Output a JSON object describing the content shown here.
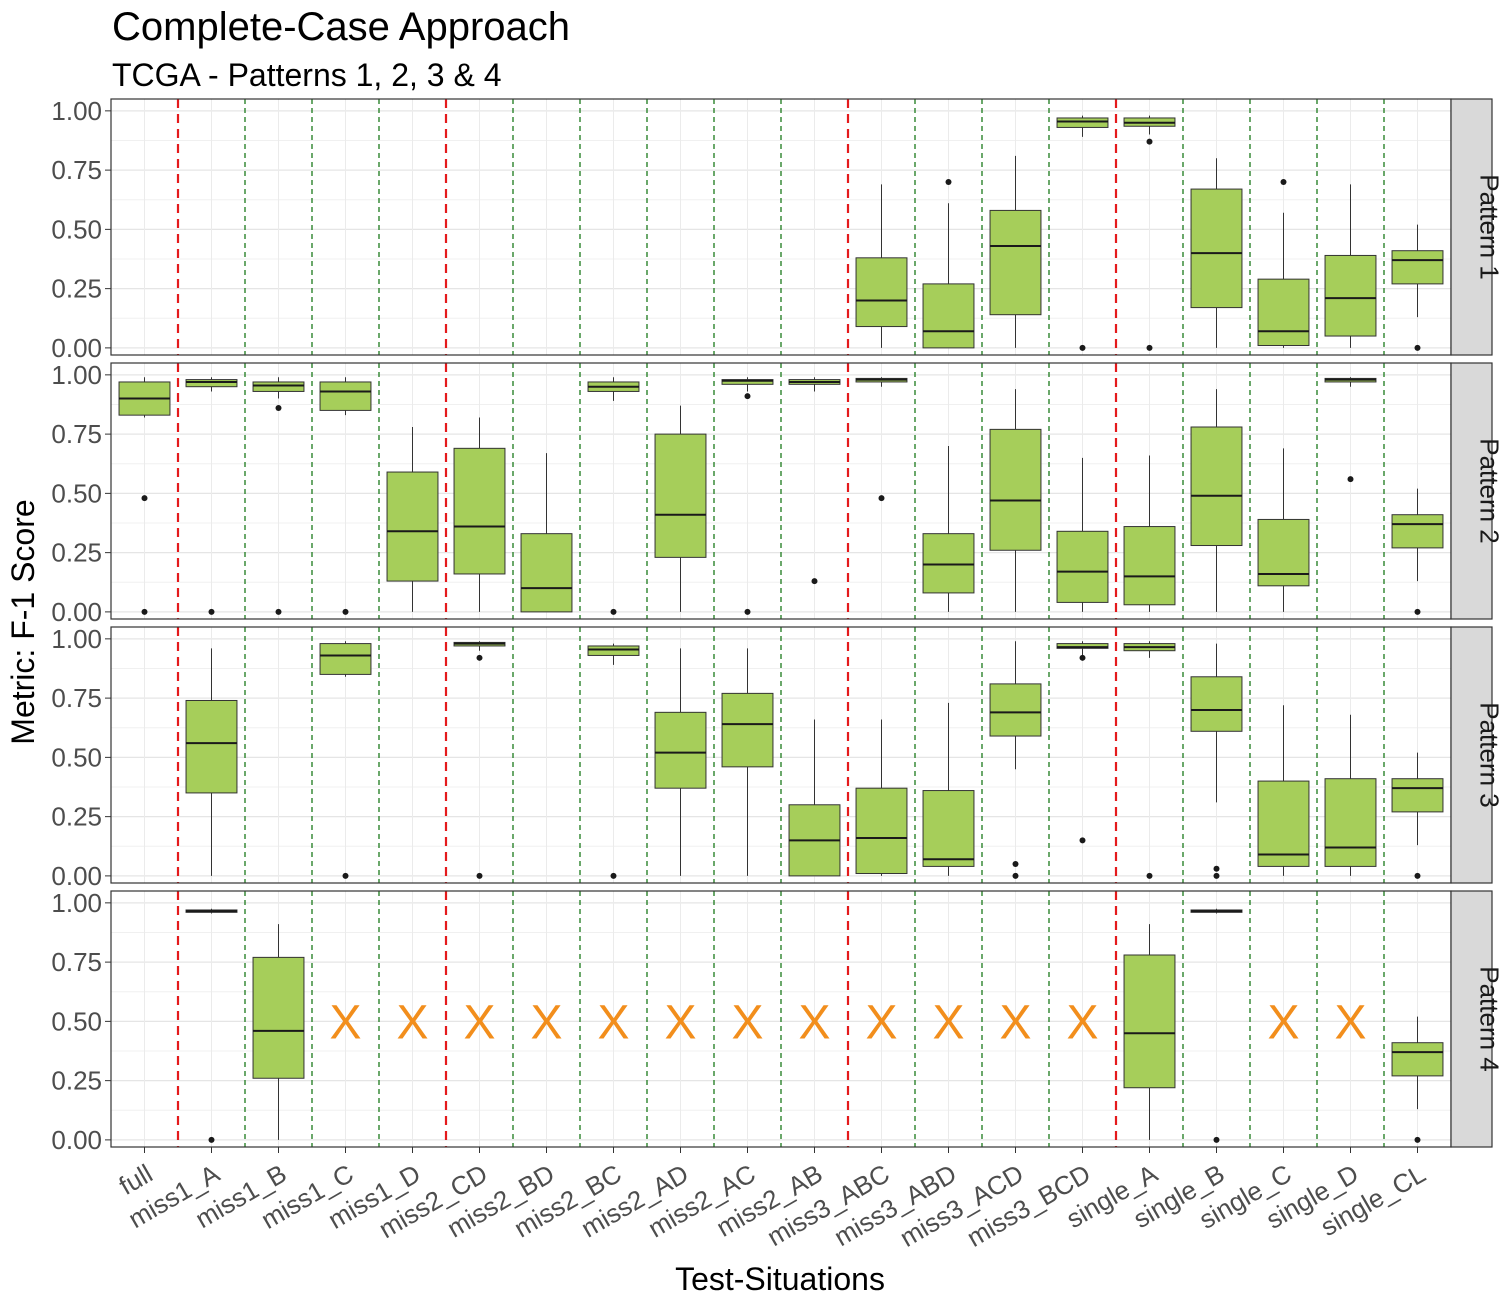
{
  "chart_data": {
    "type": "boxplot",
    "title": "Complete-Case Approach",
    "subtitle": "TCGA - Patterns 1, 2, 3 & 4",
    "xlabel": "Test-Situations",
    "ylabel": "Metric: F-1 Score",
    "ylim": [
      -0.03,
      1.05
    ],
    "yticks": [
      "0.00",
      "0.25",
      "0.50",
      "0.75",
      "1.00"
    ],
    "categories": [
      "full",
      "miss1_A",
      "miss1_B",
      "miss1_C",
      "miss1_D",
      "miss2_CD",
      "miss2_BD",
      "miss2_BC",
      "miss2_AD",
      "miss2_AC",
      "miss2_AB",
      "miss3_ABC",
      "miss3_ABD",
      "miss3_ACD",
      "miss3_BCD",
      "single_A",
      "single_B",
      "single_C",
      "single_D",
      "single_CL"
    ],
    "missing_marker": "X",
    "separators": {
      "major_after_indices": [
        0,
        4,
        10,
        14
      ],
      "minor_after_indices": [
        1,
        2,
        3,
        5,
        6,
        7,
        8,
        9,
        11,
        12,
        13,
        15,
        16,
        17,
        18
      ],
      "major_color": "#e41a1c",
      "minor_color": "#1b7a1b"
    },
    "box_fill": "#a6ce5a",
    "panels": [
      {
        "label": "Pattern 1",
        "boxes": [
          {
            "category": "miss3_ABC",
            "lower": 0.0,
            "q1": 0.09,
            "median": 0.2,
            "q3": 0.38,
            "upper": 0.69,
            "outliers": []
          },
          {
            "category": "miss3_ABD",
            "lower": 0.0,
            "q1": 0.0,
            "median": 0.07,
            "q3": 0.27,
            "upper": 0.61,
            "outliers": [
              0.7
            ]
          },
          {
            "category": "miss3_ACD",
            "lower": 0.0,
            "q1": 0.14,
            "median": 0.43,
            "q3": 0.58,
            "upper": 0.81,
            "outliers": []
          },
          {
            "category": "miss3_BCD",
            "lower": 0.89,
            "q1": 0.93,
            "median": 0.955,
            "q3": 0.97,
            "upper": 0.98,
            "outliers": [
              0.0
            ]
          },
          {
            "category": "single_A",
            "lower": 0.9,
            "q1": 0.935,
            "median": 0.95,
            "q3": 0.97,
            "upper": 0.98,
            "outliers": [
              0.87,
              0.0
            ]
          },
          {
            "category": "single_B",
            "lower": 0.0,
            "q1": 0.17,
            "median": 0.4,
            "q3": 0.67,
            "upper": 0.8,
            "outliers": []
          },
          {
            "category": "single_C",
            "lower": 0.0,
            "q1": 0.01,
            "median": 0.07,
            "q3": 0.29,
            "upper": 0.57,
            "outliers": [
              0.7
            ]
          },
          {
            "category": "single_D",
            "lower": 0.0,
            "q1": 0.05,
            "median": 0.21,
            "q3": 0.39,
            "upper": 0.69,
            "outliers": []
          },
          {
            "category": "single_CL",
            "lower": 0.13,
            "q1": 0.27,
            "median": 0.37,
            "q3": 0.41,
            "upper": 0.52,
            "outliers": [
              0.0
            ]
          }
        ],
        "missing": []
      },
      {
        "label": "Pattern 2",
        "boxes": [
          {
            "category": "full",
            "lower": 0.82,
            "q1": 0.83,
            "median": 0.9,
            "q3": 0.97,
            "upper": 0.99,
            "outliers": [
              0.48,
              0.0
            ]
          },
          {
            "category": "miss1_A",
            "lower": 0.93,
            "q1": 0.95,
            "median": 0.97,
            "q3": 0.98,
            "upper": 0.99,
            "outliers": [
              0.0
            ]
          },
          {
            "category": "miss1_B",
            "lower": 0.9,
            "q1": 0.93,
            "median": 0.955,
            "q3": 0.97,
            "upper": 0.99,
            "outliers": [
              0.86,
              0.0
            ]
          },
          {
            "category": "miss1_C",
            "lower": 0.83,
            "q1": 0.85,
            "median": 0.93,
            "q3": 0.97,
            "upper": 0.99,
            "outliers": [
              0.0
            ]
          },
          {
            "category": "miss1_D",
            "lower": 0.0,
            "q1": 0.13,
            "median": 0.34,
            "q3": 0.59,
            "upper": 0.78,
            "outliers": []
          },
          {
            "category": "miss2_CD",
            "lower": 0.0,
            "q1": 0.16,
            "median": 0.36,
            "q3": 0.69,
            "upper": 0.82,
            "outliers": []
          },
          {
            "category": "miss2_BD",
            "lower": 0.0,
            "q1": 0.0,
            "median": 0.1,
            "q3": 0.33,
            "upper": 0.67,
            "outliers": []
          },
          {
            "category": "miss2_BC",
            "lower": 0.89,
            "q1": 0.93,
            "median": 0.95,
            "q3": 0.97,
            "upper": 0.99,
            "outliers": [
              0.0
            ]
          },
          {
            "category": "miss2_AD",
            "lower": 0.0,
            "q1": 0.23,
            "median": 0.41,
            "q3": 0.75,
            "upper": 0.87,
            "outliers": []
          },
          {
            "category": "miss2_AC",
            "lower": 0.93,
            "q1": 0.96,
            "median": 0.975,
            "q3": 0.98,
            "upper": 0.99,
            "outliers": [
              0.91,
              0.0
            ]
          },
          {
            "category": "miss2_AB",
            "lower": 0.93,
            "q1": 0.96,
            "median": 0.97,
            "q3": 0.98,
            "upper": 0.99,
            "outliers": [
              0.13
            ]
          },
          {
            "category": "miss3_ABC",
            "lower": 0.95,
            "q1": 0.97,
            "median": 0.98,
            "q3": 0.985,
            "upper": 0.99,
            "outliers": [
              0.48
            ]
          },
          {
            "category": "miss3_ABD",
            "lower": 0.0,
            "q1": 0.08,
            "median": 0.2,
            "q3": 0.33,
            "upper": 0.7,
            "outliers": []
          },
          {
            "category": "miss3_ACD",
            "lower": 0.0,
            "q1": 0.26,
            "median": 0.47,
            "q3": 0.77,
            "upper": 0.94,
            "outliers": []
          },
          {
            "category": "miss3_BCD",
            "lower": 0.0,
            "q1": 0.04,
            "median": 0.17,
            "q3": 0.34,
            "upper": 0.65,
            "outliers": []
          },
          {
            "category": "single_A",
            "lower": 0.0,
            "q1": 0.03,
            "median": 0.15,
            "q3": 0.36,
            "upper": 0.66,
            "outliers": []
          },
          {
            "category": "single_B",
            "lower": 0.0,
            "q1": 0.28,
            "median": 0.49,
            "q3": 0.78,
            "upper": 0.94,
            "outliers": []
          },
          {
            "category": "single_C",
            "lower": 0.0,
            "q1": 0.11,
            "median": 0.16,
            "q3": 0.39,
            "upper": 0.69,
            "outliers": []
          },
          {
            "category": "single_D",
            "lower": 0.95,
            "q1": 0.97,
            "median": 0.98,
            "q3": 0.985,
            "upper": 0.99,
            "outliers": [
              0.56
            ]
          },
          {
            "category": "single_CL",
            "lower": 0.13,
            "q1": 0.27,
            "median": 0.37,
            "q3": 0.41,
            "upper": 0.52,
            "outliers": [
              0.0
            ]
          }
        ],
        "missing": []
      },
      {
        "label": "Pattern 3",
        "boxes": [
          {
            "category": "miss1_A",
            "lower": 0.0,
            "q1": 0.35,
            "median": 0.56,
            "q3": 0.74,
            "upper": 0.96,
            "outliers": []
          },
          {
            "category": "miss1_C",
            "lower": 0.84,
            "q1": 0.85,
            "median": 0.93,
            "q3": 0.98,
            "upper": 0.99,
            "outliers": [
              0.0
            ]
          },
          {
            "category": "miss2_CD",
            "lower": 0.95,
            "q1": 0.97,
            "median": 0.98,
            "q3": 0.985,
            "upper": 0.99,
            "outliers": [
              0.92,
              0.0
            ]
          },
          {
            "category": "miss2_BC",
            "lower": 0.89,
            "q1": 0.93,
            "median": 0.955,
            "q3": 0.97,
            "upper": 0.98,
            "outliers": [
              0.0
            ]
          },
          {
            "category": "miss2_AD",
            "lower": 0.0,
            "q1": 0.37,
            "median": 0.52,
            "q3": 0.69,
            "upper": 0.96,
            "outliers": []
          },
          {
            "category": "miss2_AC",
            "lower": 0.0,
            "q1": 0.46,
            "median": 0.64,
            "q3": 0.77,
            "upper": 0.96,
            "outliers": []
          },
          {
            "category": "miss2_AB",
            "lower": 0.0,
            "q1": 0.0,
            "median": 0.15,
            "q3": 0.3,
            "upper": 0.66,
            "outliers": []
          },
          {
            "category": "miss3_ABC",
            "lower": 0.0,
            "q1": 0.01,
            "median": 0.16,
            "q3": 0.37,
            "upper": 0.66,
            "outliers": []
          },
          {
            "category": "miss3_ABD",
            "lower": 0.0,
            "q1": 0.04,
            "median": 0.07,
            "q3": 0.36,
            "upper": 0.73,
            "outliers": []
          },
          {
            "category": "miss3_ACD",
            "lower": 0.45,
            "q1": 0.59,
            "median": 0.69,
            "q3": 0.81,
            "upper": 0.99,
            "outliers": [
              0.05,
              0.0
            ]
          },
          {
            "category": "miss3_BCD",
            "lower": 0.93,
            "q1": 0.96,
            "median": 0.965,
            "q3": 0.98,
            "upper": 0.99,
            "outliers": [
              0.92,
              0.15
            ]
          },
          {
            "category": "single_A",
            "lower": 0.92,
            "q1": 0.95,
            "median": 0.965,
            "q3": 0.98,
            "upper": 0.99,
            "outliers": [
              0.0
            ]
          },
          {
            "category": "single_B",
            "lower": 0.31,
            "q1": 0.61,
            "median": 0.7,
            "q3": 0.84,
            "upper": 0.98,
            "outliers": [
              0.03,
              0.0
            ]
          },
          {
            "category": "single_C",
            "lower": 0.0,
            "q1": 0.04,
            "median": 0.09,
            "q3": 0.4,
            "upper": 0.72,
            "outliers": []
          },
          {
            "category": "single_D",
            "lower": 0.0,
            "q1": 0.04,
            "median": 0.12,
            "q3": 0.41,
            "upper": 0.68,
            "outliers": []
          },
          {
            "category": "single_CL",
            "lower": 0.13,
            "q1": 0.27,
            "median": 0.37,
            "q3": 0.41,
            "upper": 0.52,
            "outliers": [
              0.0
            ]
          }
        ],
        "missing": []
      },
      {
        "label": "Pattern 4",
        "boxes": [
          {
            "category": "miss1_A",
            "lower": 0.955,
            "q1": 0.96,
            "median": 0.965,
            "q3": 0.97,
            "upper": 0.975,
            "outliers": [
              0.0
            ]
          },
          {
            "category": "miss1_B",
            "lower": 0.0,
            "q1": 0.26,
            "median": 0.46,
            "q3": 0.77,
            "upper": 0.91,
            "outliers": []
          },
          {
            "category": "single_A",
            "lower": 0.0,
            "q1": 0.22,
            "median": 0.45,
            "q3": 0.78,
            "upper": 0.91,
            "outliers": []
          },
          {
            "category": "single_B",
            "lower": 0.955,
            "q1": 0.96,
            "median": 0.965,
            "q3": 0.97,
            "upper": 0.975,
            "outliers": [
              0.0
            ]
          },
          {
            "category": "single_CL",
            "lower": 0.13,
            "q1": 0.27,
            "median": 0.37,
            "q3": 0.41,
            "upper": 0.52,
            "outliers": [
              0.0
            ]
          }
        ],
        "missing": [
          "miss1_C",
          "miss1_D",
          "miss2_CD",
          "miss2_BD",
          "miss2_BC",
          "miss2_AD",
          "miss2_AC",
          "miss2_AB",
          "miss3_ABC",
          "miss3_ABD",
          "miss3_ACD",
          "miss3_BCD",
          "single_C",
          "single_D"
        ]
      }
    ]
  }
}
